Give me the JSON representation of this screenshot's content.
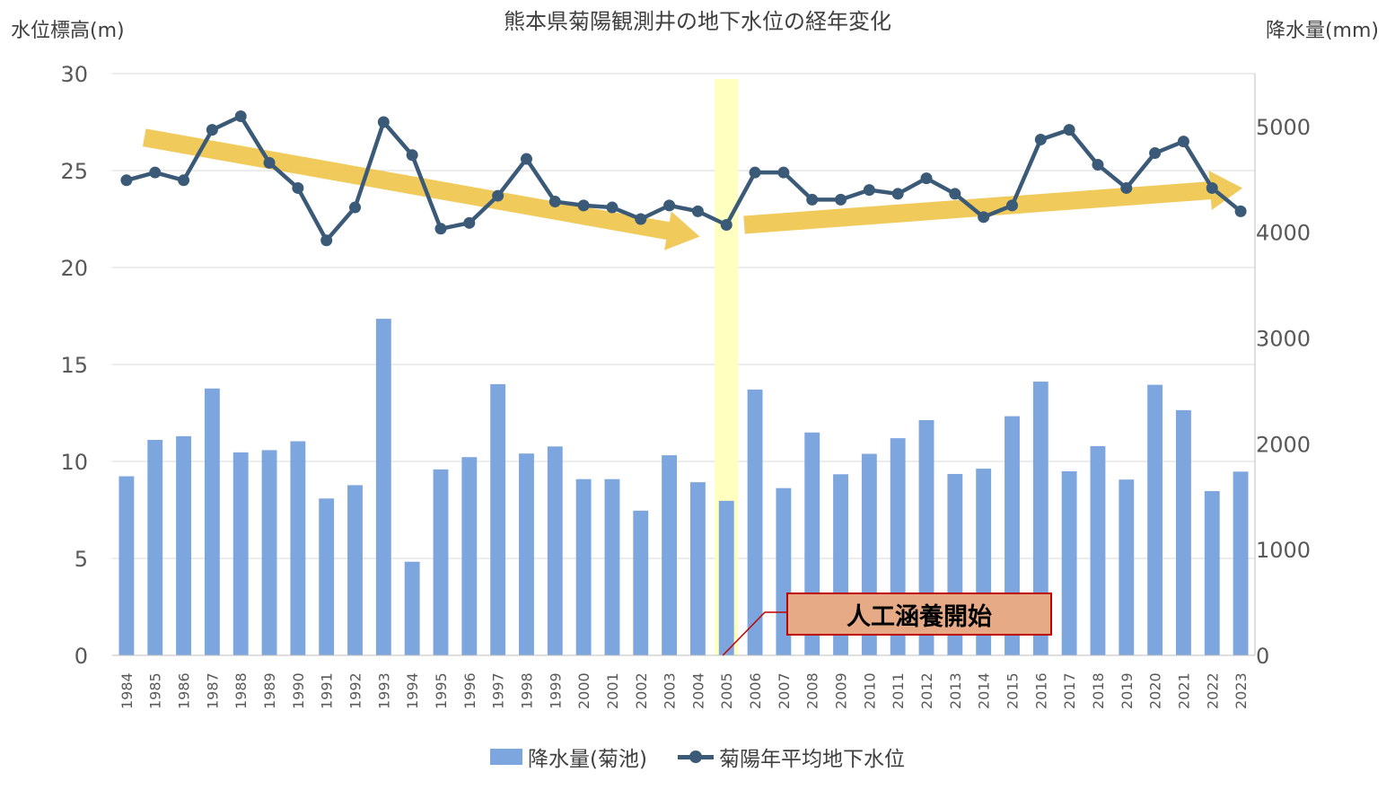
{
  "chart_data": {
    "type": "bar",
    "title": "熊本県菊陽観測井の地下水位の経年変化",
    "ylabel_left": "水位標高(m)",
    "ylabel_right": "降水量(mm)",
    "y_left_lim": [
      0,
      30
    ],
    "y_left_ticks": [
      "0",
      "5",
      "10",
      "15",
      "20",
      "25",
      "30"
    ],
    "y_right_lim": [
      0,
      5500
    ],
    "y_right_ticks": [
      "0",
      "1000",
      "2000",
      "3000",
      "4000",
      "5000"
    ],
    "grid": true,
    "legend_position": "bottom",
    "categories": [
      "1984",
      "1985",
      "1986",
      "1987",
      "1988",
      "1989",
      "1990",
      "1991",
      "1992",
      "1993",
      "1994",
      "1995",
      "1996",
      "1997",
      "1998",
      "1999",
      "2000",
      "2001",
      "2002",
      "2003",
      "2004",
      "2005",
      "2006",
      "2007",
      "2008",
      "2009",
      "2010",
      "2011",
      "2012",
      "2013",
      "2014",
      "2015",
      "2016",
      "2017",
      "2018",
      "2019",
      "2020",
      "2021",
      "2022",
      "2023"
    ],
    "series": [
      {
        "name": "降水量(菊池)",
        "type": "bar",
        "axis": "right",
        "color": "#7ea6de",
        "values": [
          1693,
          2037,
          2072,
          2523,
          1919,
          1940,
          2024,
          1483,
          1609,
          3182,
          885,
          1758,
          1874,
          2564,
          1908,
          1975,
          1666,
          1666,
          1368,
          1892,
          1637,
          1461,
          2513,
          1581,
          2107,
          1712,
          1905,
          2053,
          2224,
          1715,
          1765,
          2261,
          2588,
          1740,
          1978,
          1662,
          2558,
          2318,
          1553,
          1737
        ]
      },
      {
        "name": "菊陽年平均地下水位",
        "type": "line",
        "axis": "left",
        "color": "#3b5a78",
        "values": [
          24.5,
          24.9,
          24.5,
          27.1,
          27.8,
          25.4,
          24.1,
          21.4,
          23.1,
          27.5,
          25.8,
          22.0,
          22.3,
          23.7,
          25.6,
          23.4,
          23.2,
          23.1,
          22.5,
          23.2,
          22.9,
          22.2,
          24.9,
          24.9,
          23.5,
          23.5,
          24.0,
          23.8,
          24.6,
          23.8,
          22.6,
          23.2,
          26.6,
          27.1,
          25.3,
          24.1,
          25.9,
          26.5,
          24.1,
          22.9
        ]
      }
    ],
    "annotation": {
      "text": "人工涵養開始",
      "year": "2005",
      "box_color": "#e6aa86",
      "border_color": "#c00000",
      "highlight_color": "#ffffc0"
    },
    "trend_arrows": {
      "color": "#f0c54e",
      "arrows": [
        {
          "from_year": "1985",
          "from_level": 26.7,
          "to_year": "2004",
          "to_level": 21.6
        },
        {
          "from_year": "2006",
          "from_level": 22.2,
          "to_year": "2023",
          "to_level": 24.1
        }
      ]
    }
  }
}
